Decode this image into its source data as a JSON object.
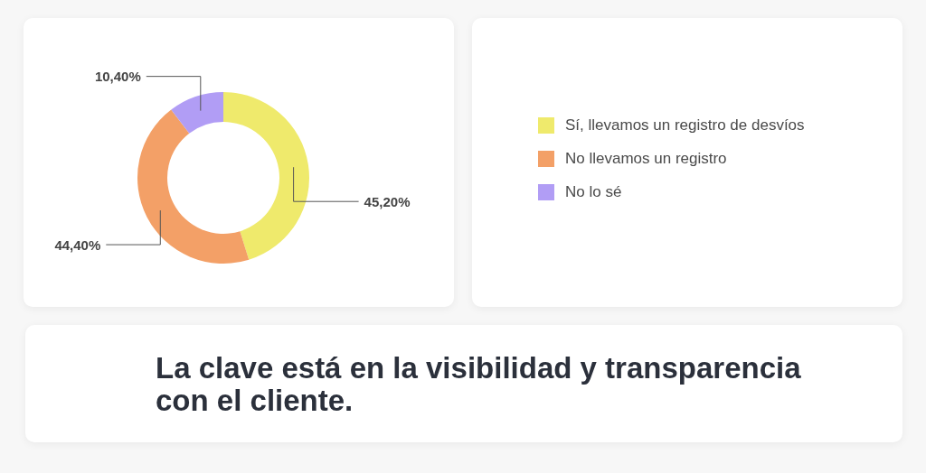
{
  "chart_data": {
    "type": "donut",
    "categories": [
      "Sí, llevamos un registro de desvíos",
      "No llevamos un registro",
      "No lo sé"
    ],
    "values": [
      45.2,
      44.4,
      10.4
    ],
    "colors": [
      "#efea6c",
      "#f3a067",
      "#b19df5"
    ],
    "value_labels": [
      "45,20%",
      "44,40%",
      "10,40%"
    ],
    "legend": "right",
    "annotations": [
      "La clave está en la visibilidad y transparencia con el cliente."
    ]
  }
}
